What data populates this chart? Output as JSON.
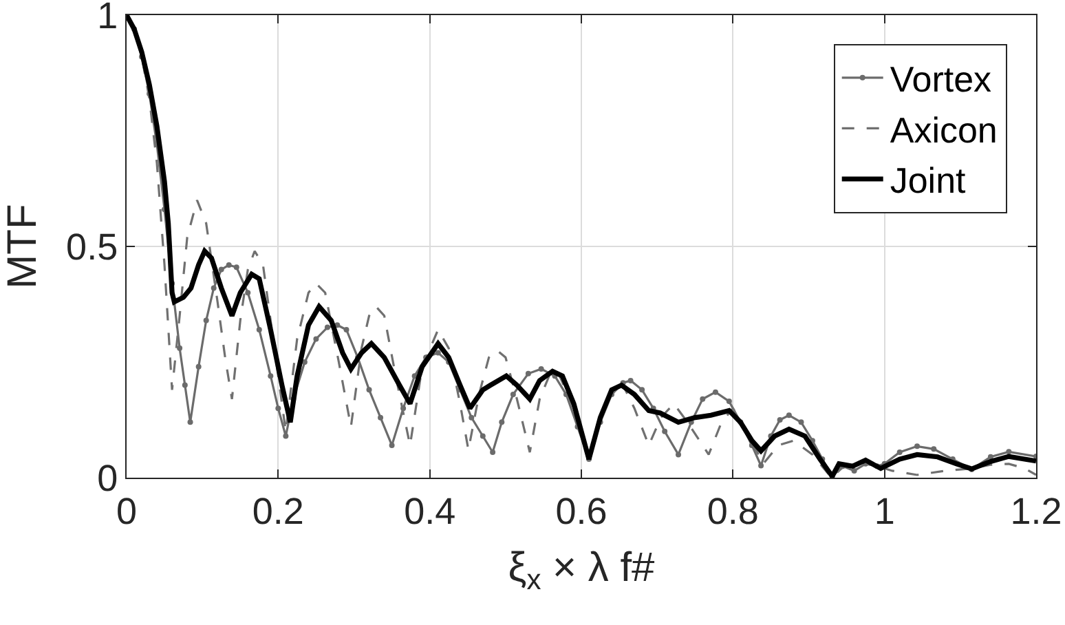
{
  "chart_data": {
    "type": "line",
    "xlabel": "ξ$_{x}$ × λ f#",
    "ylabel": "MTF",
    "xlim": [
      0,
      1.2
    ],
    "xticks": [
      0,
      0.2,
      0.4,
      0.6,
      0.8,
      1,
      1.2
    ],
    "ylim": [
      0,
      1
    ],
    "yticks": [
      0,
      0.5,
      1
    ],
    "grid": true,
    "legend": "top right",
    "series": [
      {
        "name": "Vortex",
        "color": "#6b6b6b",
        "marker": "circle",
        "line_style": "solid",
        "x": [
          0,
          0.01,
          0.02,
          0.03,
          0.04,
          0.05,
          0.06,
          0.07,
          0.077,
          0.084,
          0.095,
          0.105,
          0.115,
          0.125,
          0.135,
          0.145,
          0.16,
          0.175,
          0.19,
          0.2,
          0.21,
          0.22,
          0.235,
          0.25,
          0.265,
          0.278,
          0.29,
          0.305,
          0.32,
          0.335,
          0.35,
          0.365,
          0.38,
          0.395,
          0.411,
          0.425,
          0.44,
          0.455,
          0.47,
          0.483,
          0.495,
          0.51,
          0.53,
          0.547,
          0.565,
          0.58,
          0.595,
          0.61,
          0.625,
          0.64,
          0.655,
          0.665,
          0.68,
          0.695,
          0.71,
          0.728,
          0.745,
          0.76,
          0.777,
          0.795,
          0.81,
          0.825,
          0.837,
          0.85,
          0.862,
          0.874,
          0.89,
          0.905,
          0.918,
          0.931,
          0.945,
          0.96,
          0.975,
          0.99,
          1.0,
          1.02,
          1.043,
          1.065,
          1.09,
          1.115,
          1.14,
          1.164,
          1.2
        ],
        "values": [
          1.0,
          0.97,
          0.91,
          0.83,
          0.72,
          0.58,
          0.42,
          0.28,
          0.2,
          0.12,
          0.24,
          0.34,
          0.41,
          0.45,
          0.46,
          0.455,
          0.4,
          0.32,
          0.22,
          0.15,
          0.09,
          0.17,
          0.25,
          0.3,
          0.325,
          0.33,
          0.32,
          0.26,
          0.19,
          0.13,
          0.07,
          0.15,
          0.22,
          0.26,
          0.27,
          0.25,
          0.19,
          0.13,
          0.09,
          0.055,
          0.12,
          0.18,
          0.225,
          0.235,
          0.22,
          0.18,
          0.11,
          0.04,
          0.12,
          0.18,
          0.205,
          0.21,
          0.19,
          0.15,
          0.1,
          0.05,
          0.12,
          0.17,
          0.185,
          0.165,
          0.12,
          0.07,
          0.026,
          0.09,
          0.125,
          0.135,
          0.12,
          0.08,
          0.04,
          0.003,
          0.025,
          0.015,
          0.03,
          0.025,
          0.03,
          0.055,
          0.068,
          0.062,
          0.04,
          0.018,
          0.045,
          0.056,
          0.046
        ]
      },
      {
        "name": "Axicon",
        "color": "#707070",
        "marker": "none",
        "line_style": "dashed",
        "x": [
          0,
          0.01,
          0.02,
          0.03,
          0.04,
          0.05,
          0.06,
          0.07,
          0.08,
          0.093,
          0.105,
          0.12,
          0.13,
          0.139,
          0.15,
          0.16,
          0.169,
          0.18,
          0.195,
          0.21,
          0.225,
          0.24,
          0.25,
          0.262,
          0.28,
          0.296,
          0.31,
          0.32,
          0.329,
          0.34,
          0.355,
          0.374,
          0.39,
          0.411,
          0.425,
          0.44,
          0.451,
          0.465,
          0.478,
          0.489,
          0.5,
          0.515,
          0.532,
          0.545,
          0.56,
          0.57,
          0.59,
          0.61,
          0.625,
          0.64,
          0.655,
          0.67,
          0.689,
          0.705,
          0.722,
          0.74,
          0.768,
          0.785,
          0.8,
          0.815,
          0.84,
          0.86,
          0.88,
          0.905,
          0.93,
          0.95,
          0.97,
          0.99,
          1.01,
          1.043,
          1.08,
          1.115,
          1.14,
          1.164,
          1.185,
          1.2
        ],
        "values": [
          1.0,
          0.97,
          0.91,
          0.82,
          0.68,
          0.46,
          0.19,
          0.35,
          0.52,
          0.6,
          0.55,
          0.38,
          0.26,
          0.17,
          0.34,
          0.45,
          0.49,
          0.46,
          0.28,
          0.1,
          0.3,
          0.4,
          0.42,
          0.4,
          0.25,
          0.11,
          0.28,
          0.35,
          0.37,
          0.35,
          0.22,
          0.07,
          0.24,
          0.32,
          0.28,
          0.16,
          0.06,
          0.18,
          0.26,
          0.275,
          0.26,
          0.17,
          0.055,
          0.17,
          0.23,
          0.225,
          0.15,
          0.04,
          0.13,
          0.19,
          0.2,
          0.15,
          0.07,
          0.13,
          0.16,
          0.12,
          0.05,
          0.12,
          0.15,
          0.11,
          0.03,
          0.07,
          0.08,
          0.05,
          0.0,
          0.03,
          0.035,
          0.025,
          0.015,
          0.006,
          0.015,
          0.02,
          0.028,
          0.03,
          0.02,
          0.006
        ]
      },
      {
        "name": "Joint",
        "color": "#000000",
        "marker": "none",
        "line_style": "solid",
        "x": [
          0,
          0.01,
          0.02,
          0.03,
          0.04,
          0.05,
          0.055,
          0.06,
          0.063,
          0.075,
          0.085,
          0.095,
          0.103,
          0.112,
          0.125,
          0.139,
          0.15,
          0.165,
          0.175,
          0.19,
          0.205,
          0.216,
          0.225,
          0.24,
          0.254,
          0.27,
          0.285,
          0.296,
          0.31,
          0.323,
          0.34,
          0.36,
          0.374,
          0.39,
          0.411,
          0.425,
          0.44,
          0.453,
          0.47,
          0.48,
          0.501,
          0.515,
          0.532,
          0.545,
          0.562,
          0.575,
          0.59,
          0.61,
          0.625,
          0.64,
          0.653,
          0.67,
          0.689,
          0.704,
          0.728,
          0.75,
          0.771,
          0.795,
          0.81,
          0.825,
          0.837,
          0.855,
          0.874,
          0.895,
          0.915,
          0.931,
          0.94,
          0.958,
          0.975,
          0.995,
          1.02,
          1.043,
          1.07,
          1.095,
          1.115,
          1.14,
          1.164,
          1.2
        ],
        "values": [
          1.0,
          0.97,
          0.92,
          0.85,
          0.76,
          0.64,
          0.55,
          0.4,
          0.38,
          0.39,
          0.41,
          0.46,
          0.49,
          0.475,
          0.41,
          0.35,
          0.4,
          0.44,
          0.43,
          0.32,
          0.2,
          0.12,
          0.22,
          0.33,
          0.37,
          0.34,
          0.27,
          0.235,
          0.27,
          0.29,
          0.26,
          0.2,
          0.16,
          0.24,
          0.29,
          0.26,
          0.2,
          0.15,
          0.19,
          0.2,
          0.22,
          0.2,
          0.17,
          0.21,
          0.23,
          0.22,
          0.16,
          0.04,
          0.13,
          0.19,
          0.2,
          0.18,
          0.145,
          0.14,
          0.12,
          0.13,
          0.135,
          0.145,
          0.12,
          0.08,
          0.058,
          0.09,
          0.105,
          0.09,
          0.04,
          0.003,
          0.03,
          0.025,
          0.038,
          0.02,
          0.04,
          0.05,
          0.045,
          0.03,
          0.019,
          0.035,
          0.046,
          0.036
        ]
      }
    ]
  }
}
